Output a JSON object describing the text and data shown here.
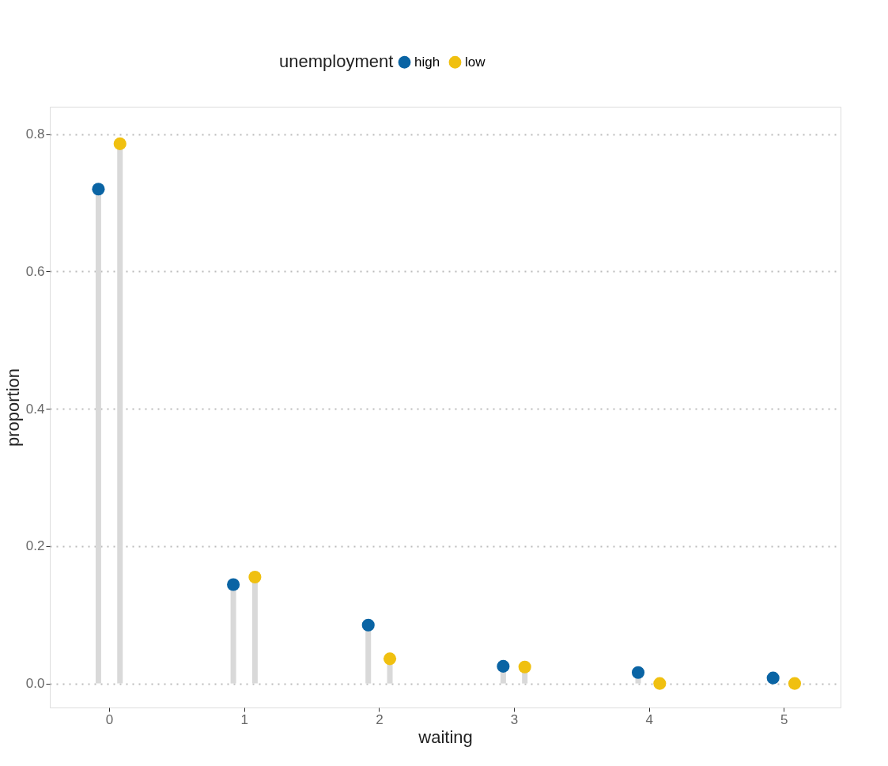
{
  "chart_data": {
    "type": "lollipop",
    "xlabel": "waiting",
    "ylabel": "proportion",
    "legend_title": "unemployment",
    "legend": "top",
    "grid": "y",
    "marker": "circle",
    "series": [
      {
        "name": "high",
        "color": "#0a64a4",
        "x": [
          -0.08,
          0.92,
          1.92,
          2.92,
          3.92,
          4.92
        ],
        "values": [
          0.72,
          0.144,
          0.085,
          0.025,
          0.016,
          0.008
        ]
      },
      {
        "name": "low",
        "color": "#f0c010",
        "x": [
          0.08,
          1.08,
          2.08,
          3.08,
          4.08,
          5.08
        ],
        "values": [
          0.786,
          0.155,
          0.036,
          0.024,
          0.0,
          0.0
        ]
      }
    ],
    "xlim": [
      -0.44,
      5.42
    ],
    "xticks": [
      0,
      1,
      2,
      3,
      4,
      5
    ],
    "ylim": [
      -0.035,
      0.84
    ],
    "yticks": [
      {
        "value": 0,
        "label": "0.0"
      },
      {
        "value": 0.2,
        "label": "0.2"
      },
      {
        "value": 0.4,
        "label": "0.4"
      },
      {
        "value": 0.6,
        "label": "0.6"
      },
      {
        "value": 0.8,
        "label": "0.8"
      }
    ]
  }
}
